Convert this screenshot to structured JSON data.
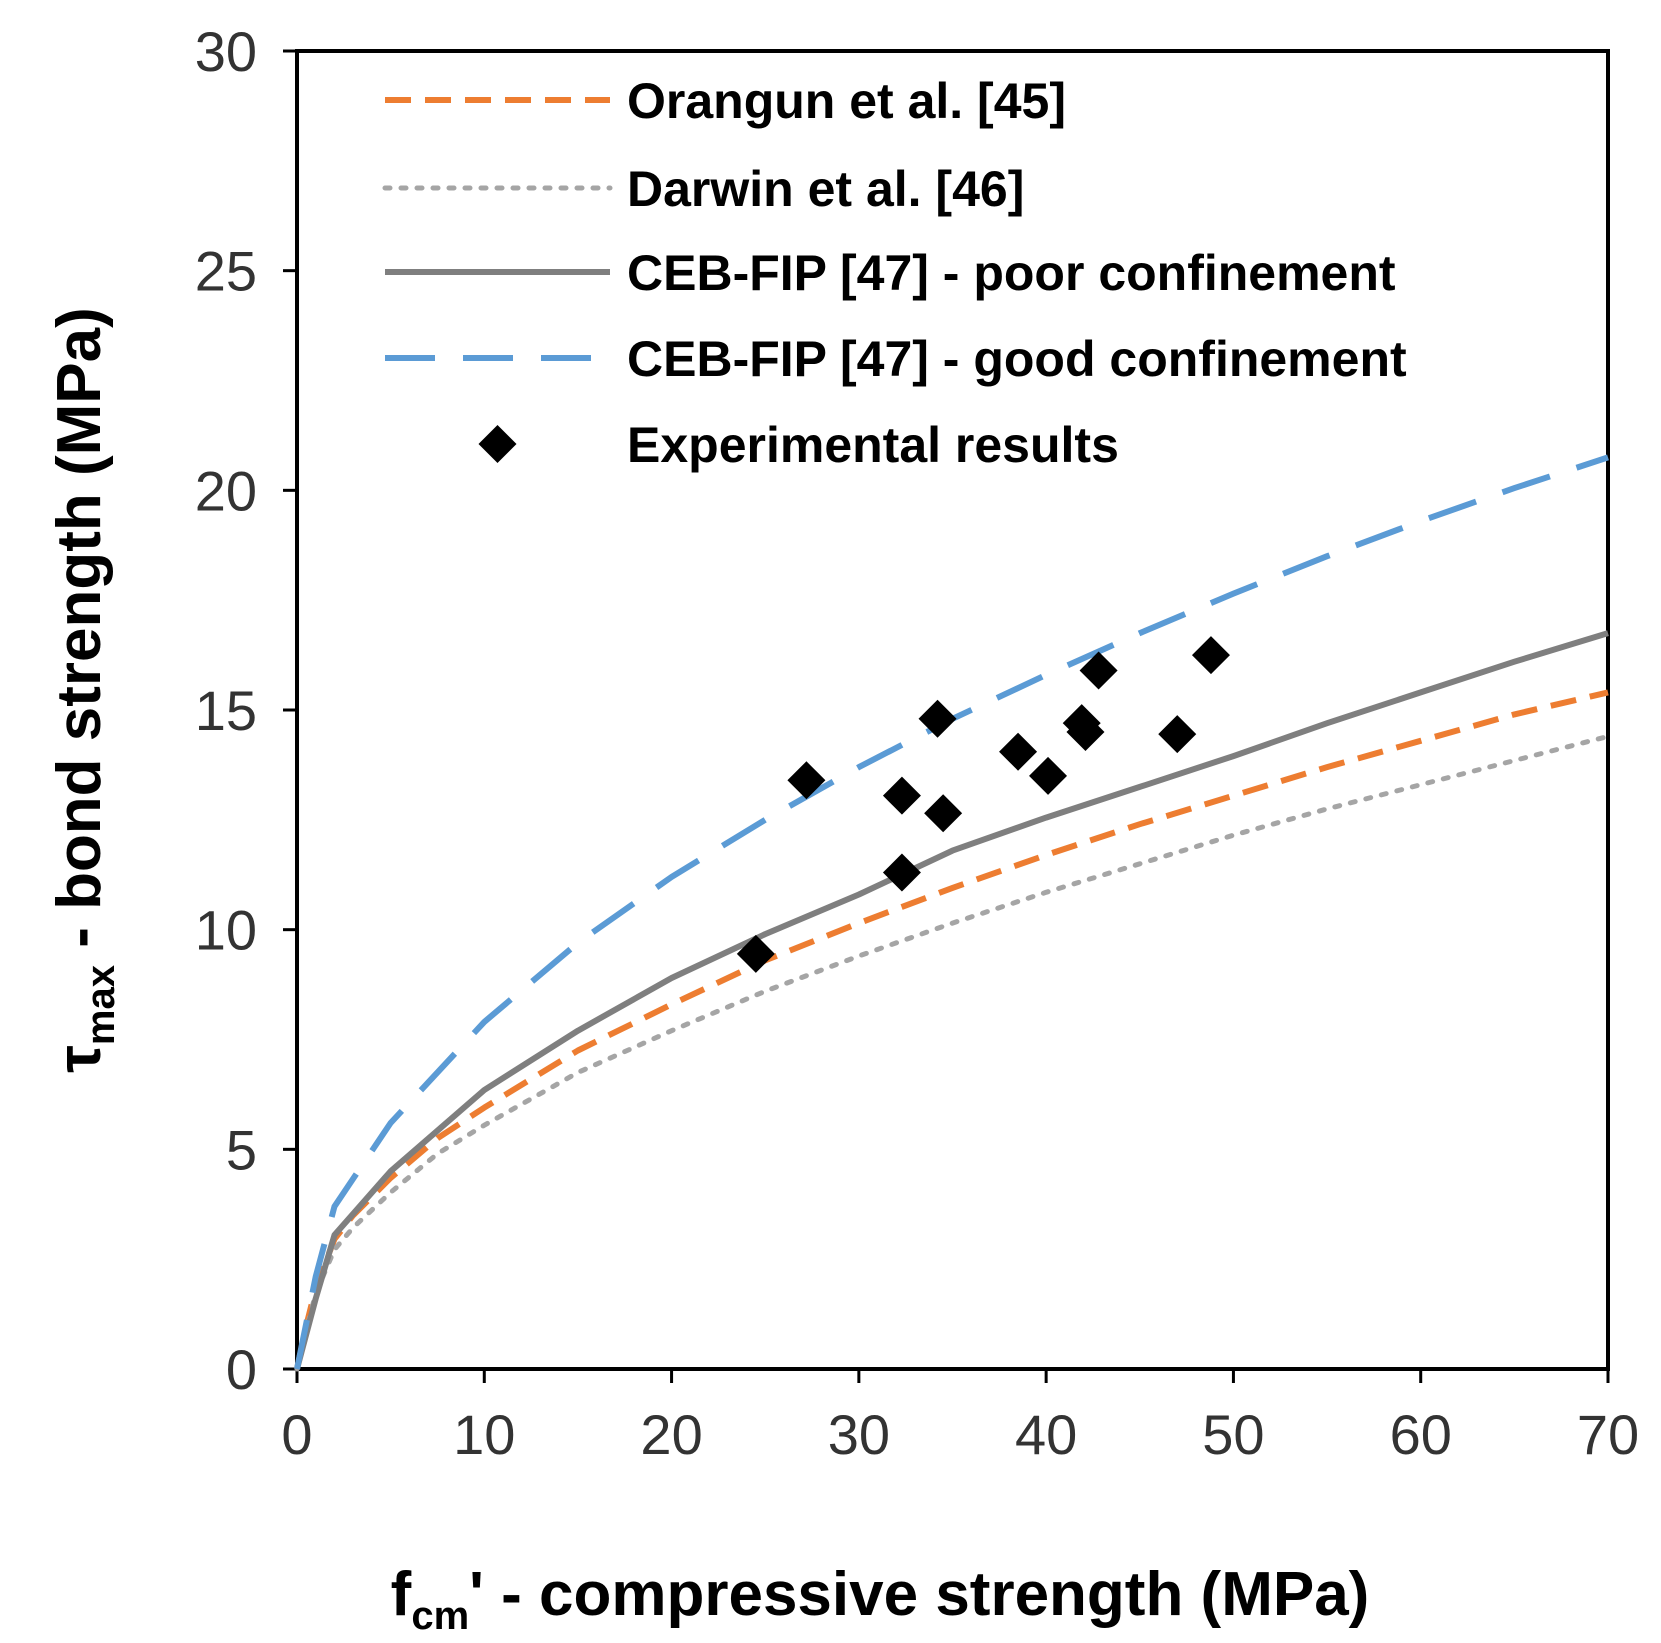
{
  "chart_data": {
    "type": "line",
    "title": "",
    "xlabel": {
      "main": "f",
      "sub": "cm",
      "rest": "' - compressive strength (MPa)"
    },
    "ylabel": {
      "main": "τ",
      "sub": "max",
      "rest": " - bond strength (MPa)"
    },
    "xlim": [
      0,
      70
    ],
    "ylim": [
      0,
      30
    ],
    "xticks": [
      "0",
      "10",
      "20",
      "30",
      "40",
      "50",
      "60",
      "70"
    ],
    "yticks": [
      "0",
      "5",
      "10",
      "15",
      "20",
      "25",
      "30"
    ],
    "grid": false,
    "legend_position": "top-left",
    "series": [
      {
        "name": "Orangun et al. [45]",
        "color": "#ED7D31",
        "style": "dashed",
        "x": [
          0,
          0.5,
          1,
          2,
          3,
          5,
          7.5,
          10,
          15,
          20,
          25,
          30,
          35,
          40,
          45,
          50,
          55,
          60,
          65,
          70
        ],
        "y": [
          0,
          1.0,
          1.84,
          2.96,
          3.5,
          4.35,
          5.25,
          5.95,
          7.25,
          8.3,
          9.3,
          10.15,
          10.95,
          11.7,
          12.4,
          13.05,
          13.7,
          14.3,
          14.9,
          15.4
        ]
      },
      {
        "name": "Darwin et al. [46]",
        "color": "#A5A5A5",
        "style": "dotted",
        "x": [
          0,
          0.5,
          1,
          2,
          3,
          5,
          7.5,
          10,
          15,
          20,
          25,
          30,
          35,
          40,
          45,
          50,
          55,
          60,
          65,
          70
        ],
        "y": [
          0,
          0.9,
          1.72,
          2.72,
          3.22,
          4.02,
          4.9,
          5.55,
          6.75,
          7.7,
          8.6,
          9.4,
          10.15,
          10.85,
          11.5,
          12.15,
          12.75,
          13.3,
          13.85,
          14.4
        ]
      },
      {
        "name": "CEB-FIP [47] - poor confinement",
        "color": "#7F7F7F",
        "style": "solid",
        "x": [
          0,
          1,
          2,
          5,
          10,
          15,
          20,
          25,
          30,
          35,
          40,
          45,
          50,
          55,
          60,
          65,
          70
        ],
        "y": [
          0,
          1.6,
          3.05,
          4.5,
          6.35,
          7.7,
          8.9,
          9.9,
          10.8,
          11.8,
          12.55,
          13.25,
          13.95,
          14.7,
          15.4,
          16.1,
          16.75
        ]
      },
      {
        "name": "CEB-FIP [47] - good confinement",
        "color": "#5B9BD5",
        "style": "longdash",
        "x": [
          0,
          1,
          2,
          5,
          10,
          15,
          20,
          25,
          30,
          35,
          40,
          45,
          50,
          55,
          60,
          65,
          70
        ],
        "y": [
          0,
          2.1,
          3.7,
          5.6,
          7.9,
          9.7,
          11.2,
          12.5,
          13.7,
          14.8,
          15.8,
          16.75,
          17.65,
          18.5,
          19.3,
          20.05,
          20.75
        ]
      }
    ],
    "scatter": {
      "name": "Experimental results",
      "color": "#000000",
      "marker": "diamond",
      "points": [
        {
          "x": 24.5,
          "y": 9.45
        },
        {
          "x": 27.2,
          "y": 13.4
        },
        {
          "x": 32.3,
          "y": 13.05
        },
        {
          "x": 32.3,
          "y": 11.3
        },
        {
          "x": 34.2,
          "y": 14.8
        },
        {
          "x": 34.5,
          "y": 12.65
        },
        {
          "x": 38.5,
          "y": 14.05
        },
        {
          "x": 40.1,
          "y": 13.5
        },
        {
          "x": 41.9,
          "y": 14.7
        },
        {
          "x": 42.1,
          "y": 14.5
        },
        {
          "x": 42.8,
          "y": 15.9
        },
        {
          "x": 47.0,
          "y": 14.45
        },
        {
          "x": 48.8,
          "y": 16.25
        }
      ]
    }
  }
}
